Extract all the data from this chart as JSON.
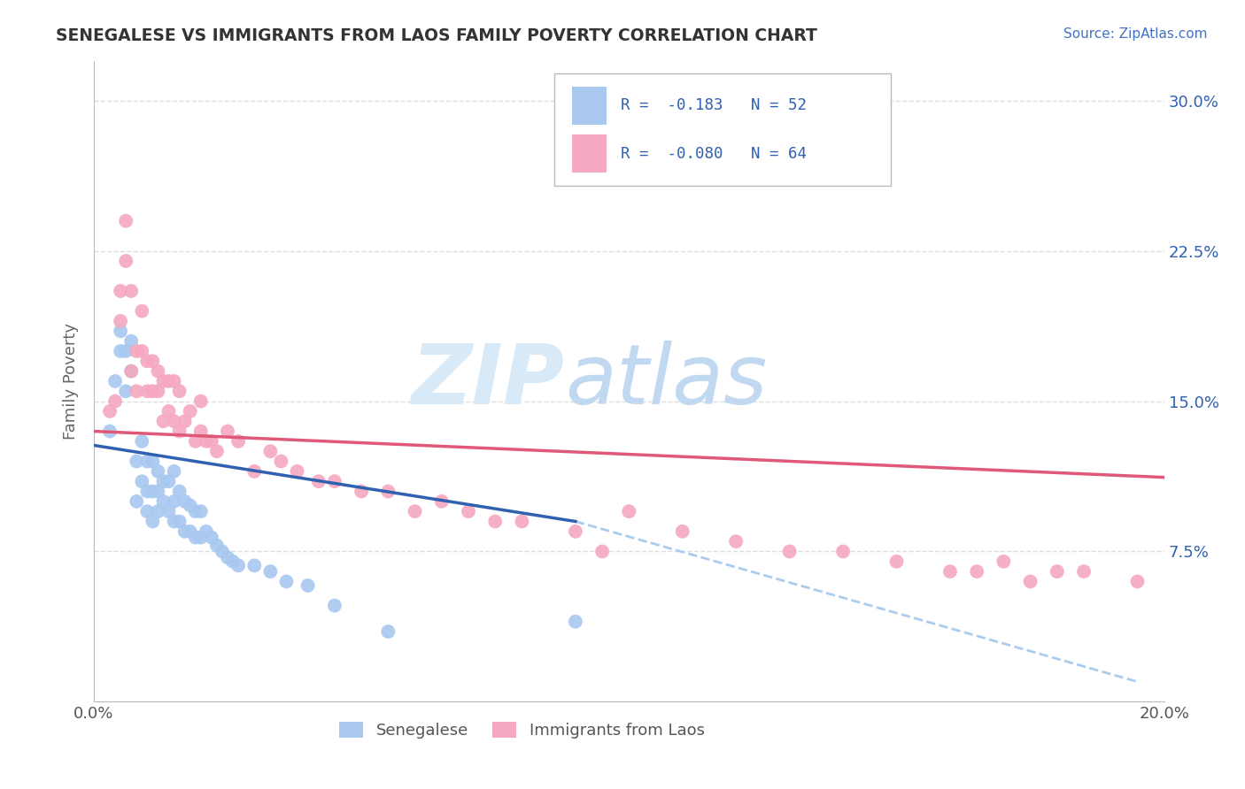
{
  "title": "SENEGALESE VS IMMIGRANTS FROM LAOS FAMILY POVERTY CORRELATION CHART",
  "source_text": "Source: ZipAtlas.com",
  "ylabel": "Family Poverty",
  "ytick_labels": [
    "7.5%",
    "15.0%",
    "22.5%",
    "30.0%"
  ],
  "ytick_values": [
    0.075,
    0.15,
    0.225,
    0.3
  ],
  "xlim": [
    0.0,
    0.2
  ],
  "ylim": [
    0.0,
    0.32
  ],
  "legend_blue_r": "-0.183",
  "legend_blue_n": "52",
  "legend_pink_r": "-0.080",
  "legend_pink_n": "64",
  "legend_label_blue": "Senegalese",
  "legend_label_pink": "Immigrants from Laos",
  "blue_color": "#A8C8F0",
  "pink_color": "#F5A8C0",
  "blue_line_color": "#3060B0",
  "pink_line_color": "#E05878",
  "dashed_line_color": "#AACCEE",
  "grid_color": "#DDDDDD",
  "bg_color": "#FFFFFF",
  "blue_scatter_x": [
    0.003,
    0.004,
    0.005,
    0.005,
    0.006,
    0.006,
    0.007,
    0.007,
    0.008,
    0.008,
    0.009,
    0.009,
    0.01,
    0.01,
    0.01,
    0.011,
    0.011,
    0.011,
    0.012,
    0.012,
    0.012,
    0.013,
    0.013,
    0.014,
    0.014,
    0.015,
    0.015,
    0.015,
    0.016,
    0.016,
    0.017,
    0.017,
    0.018,
    0.018,
    0.019,
    0.019,
    0.02,
    0.02,
    0.021,
    0.022,
    0.023,
    0.024,
    0.025,
    0.026,
    0.027,
    0.03,
    0.033,
    0.036,
    0.04,
    0.045,
    0.055,
    0.09
  ],
  "blue_scatter_y": [
    0.135,
    0.16,
    0.175,
    0.185,
    0.155,
    0.175,
    0.165,
    0.18,
    0.1,
    0.12,
    0.11,
    0.13,
    0.095,
    0.105,
    0.12,
    0.09,
    0.105,
    0.12,
    0.095,
    0.105,
    0.115,
    0.1,
    0.11,
    0.095,
    0.11,
    0.09,
    0.1,
    0.115,
    0.09,
    0.105,
    0.085,
    0.1,
    0.085,
    0.098,
    0.082,
    0.095,
    0.082,
    0.095,
    0.085,
    0.082,
    0.078,
    0.075,
    0.072,
    0.07,
    0.068,
    0.068,
    0.065,
    0.06,
    0.058,
    0.048,
    0.035,
    0.04
  ],
  "pink_scatter_x": [
    0.003,
    0.004,
    0.005,
    0.005,
    0.006,
    0.006,
    0.007,
    0.007,
    0.008,
    0.008,
    0.009,
    0.009,
    0.01,
    0.01,
    0.011,
    0.011,
    0.012,
    0.012,
    0.013,
    0.013,
    0.014,
    0.014,
    0.015,
    0.015,
    0.016,
    0.016,
    0.017,
    0.018,
    0.019,
    0.02,
    0.02,
    0.021,
    0.022,
    0.023,
    0.025,
    0.027,
    0.03,
    0.033,
    0.035,
    0.038,
    0.042,
    0.045,
    0.05,
    0.055,
    0.06,
    0.065,
    0.07,
    0.075,
    0.08,
    0.09,
    0.095,
    0.1,
    0.11,
    0.12,
    0.13,
    0.14,
    0.15,
    0.16,
    0.165,
    0.17,
    0.175,
    0.18,
    0.185,
    0.195
  ],
  "pink_scatter_y": [
    0.145,
    0.15,
    0.19,
    0.205,
    0.22,
    0.24,
    0.165,
    0.205,
    0.155,
    0.175,
    0.175,
    0.195,
    0.155,
    0.17,
    0.155,
    0.17,
    0.155,
    0.165,
    0.14,
    0.16,
    0.145,
    0.16,
    0.14,
    0.16,
    0.135,
    0.155,
    0.14,
    0.145,
    0.13,
    0.135,
    0.15,
    0.13,
    0.13,
    0.125,
    0.135,
    0.13,
    0.115,
    0.125,
    0.12,
    0.115,
    0.11,
    0.11,
    0.105,
    0.105,
    0.095,
    0.1,
    0.095,
    0.09,
    0.09,
    0.085,
    0.075,
    0.095,
    0.085,
    0.08,
    0.075,
    0.075,
    0.07,
    0.065,
    0.065,
    0.07,
    0.06,
    0.065,
    0.065,
    0.06
  ],
  "blue_line_x": [
    0.0,
    0.09
  ],
  "blue_line_y": [
    0.128,
    0.09
  ],
  "pink_line_x": [
    0.0,
    0.2
  ],
  "pink_line_y": [
    0.135,
    0.112
  ],
  "dashed_line_x": [
    0.09,
    0.195
  ],
  "dashed_line_y": [
    0.09,
    0.01
  ],
  "watermark_zip_color": "#D8EAF8",
  "watermark_atlas_color": "#C0D8F0"
}
